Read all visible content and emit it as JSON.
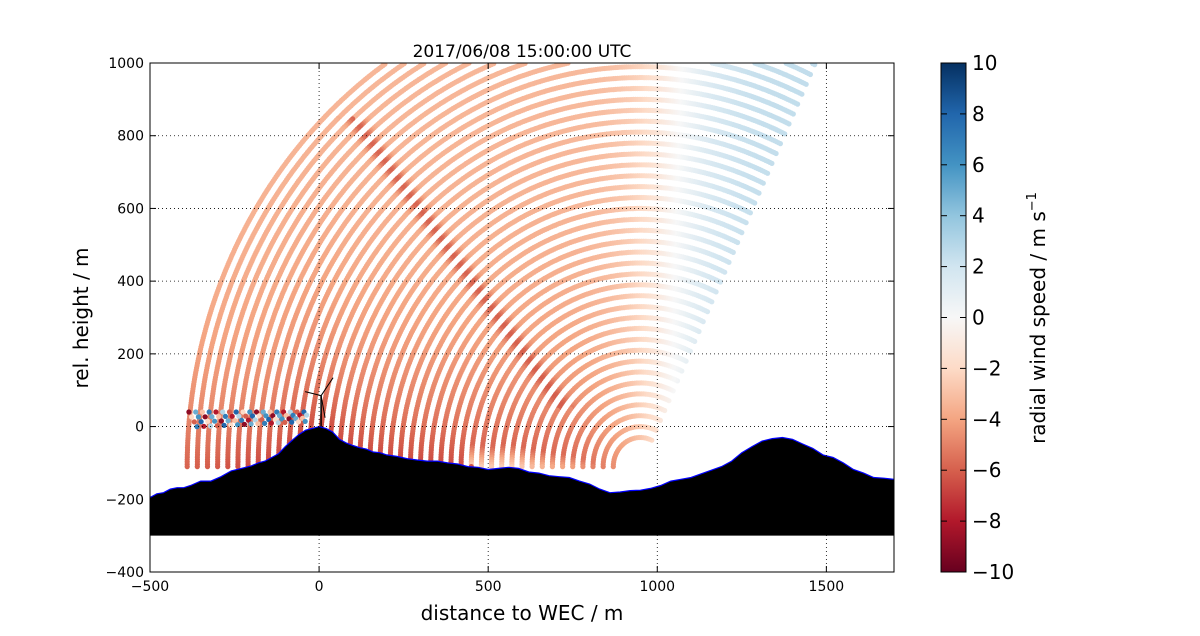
{
  "chart_data": {
    "type": "scatter",
    "title": "2017/06/08 15:00:00 UTC",
    "xlabel": "distance to WEC / m",
    "ylabel": "rel. height / m",
    "xlim": [
      -500,
      1700
    ],
    "ylim": [
      -400,
      1000
    ],
    "xticks": [
      "−500",
      "0",
      "500",
      "1000",
      "1500"
    ],
    "yticks": [
      "−400",
      "−200",
      "0",
      "200",
      "400",
      "600",
      "800",
      "1000"
    ],
    "grid": true,
    "colorbar": {
      "label": "radial wind speed / m s",
      "label_sup": "−1",
      "range": [
        -10,
        10
      ],
      "ticks": [
        "10",
        "8",
        "6",
        "4",
        "2",
        "0",
        "−2",
        "−4",
        "−6",
        "−8",
        "−10"
      ],
      "colormap": "RdBu",
      "colors": [
        "#67001f",
        "#b2182b",
        "#d6604d",
        "#f4a582",
        "#fddbc7",
        "#f7f7f7",
        "#d1e5f0",
        "#92c5de",
        "#4393c3",
        "#2166ac",
        "#053061"
      ]
    },
    "scan": {
      "origin": [
        950,
        -110
      ],
      "elevation_range_deg": [
        65,
        180
      ],
      "range_gates_m": {
        "start": 80,
        "end": 1340,
        "step": 30
      },
      "wind_pattern": {
        "near_surface_max_speed": -6.5,
        "upper_speed": -3.3,
        "far_field_speed": 2.5,
        "shear_band_speed": -6.5
      }
    },
    "terrain": {
      "x": [
        -500,
        -480,
        -460,
        -440,
        -420,
        -400,
        -380,
        -350,
        -320,
        -290,
        -260,
        -230,
        -200,
        -180,
        -160,
        -140,
        -120,
        -100,
        -80,
        -60,
        -40,
        -20,
        0,
        20,
        40,
        60,
        80,
        100,
        120,
        140,
        160,
        180,
        200,
        230,
        260,
        290,
        320,
        350,
        380,
        410,
        440,
        470,
        500,
        530,
        560,
        590,
        620,
        650,
        680,
        710,
        740,
        770,
        800,
        830,
        860,
        890,
        920,
        950,
        980,
        1010,
        1040,
        1070,
        1100,
        1130,
        1160,
        1190,
        1220,
        1250,
        1280,
        1310,
        1340,
        1370,
        1400,
        1430,
        1460,
        1490,
        1520,
        1550,
        1580,
        1610,
        1640,
        1670,
        1700
      ],
      "y": [
        -195,
        -185,
        -182,
        -172,
        -168,
        -168,
        -162,
        -150,
        -150,
        -138,
        -122,
        -115,
        -108,
        -100,
        -95,
        -85,
        -75,
        -55,
        -38,
        -22,
        -10,
        -5,
        0,
        -5,
        -15,
        -35,
        -45,
        -52,
        -58,
        -62,
        -70,
        -72,
        -78,
        -82,
        -88,
        -92,
        -95,
        -95,
        -100,
        -103,
        -110,
        -112,
        -118,
        -115,
        -112,
        -115,
        -125,
        -128,
        -135,
        -138,
        -140,
        -150,
        -158,
        -172,
        -182,
        -180,
        -176,
        -175,
        -170,
        -162,
        -150,
        -145,
        -140,
        -130,
        -120,
        -110,
        -95,
        -72,
        -55,
        -40,
        -33,
        -30,
        -35,
        -48,
        -60,
        -78,
        -85,
        -100,
        -118,
        -128,
        -140,
        -142,
        -145
      ],
      "base": -300
    },
    "turbine": {
      "x": 0,
      "hub_height": 85,
      "tower_label": ""
    },
    "near_ground_scan": {
      "rows": 4,
      "x_start": -385,
      "x_end": -30,
      "spacing": 20
    }
  }
}
